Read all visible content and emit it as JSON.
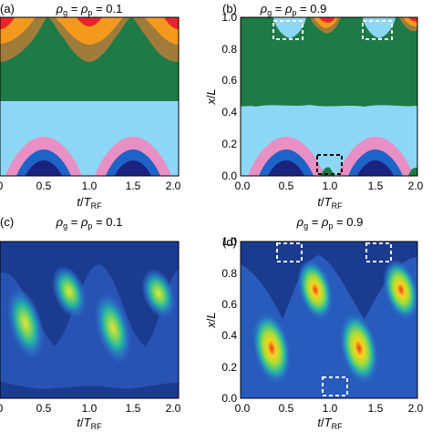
{
  "chart_data": [
    {
      "panel": "(a)",
      "type": "heatmap",
      "title": "ρg = ρp = 0.1",
      "xlabel": "t/TRF",
      "ylabel": "",
      "xlim": [
        0,
        2.0
      ],
      "ylim": [
        0,
        1.0
      ],
      "xticks": [
        "0",
        "0.5",
        "1.0",
        "1.5",
        "2.0"
      ],
      "yticks": [],
      "regions": [
        {
          "color": "#1a237e",
          "desc": "lower arcs core",
          "peaks_t": [
            0.5,
            1.5
          ],
          "x_max": 0.14
        },
        {
          "color": "#1e63c8",
          "desc": "lower arcs",
          "peaks_t": [
            0.5,
            1.5
          ],
          "x_max": 0.17
        },
        {
          "color": "#e88fc4",
          "desc": "lower arcs outer",
          "peaks_t": [
            0.5,
            1.5
          ],
          "x_max": 0.23
        },
        {
          "color": "#8ed6f5",
          "desc": "middle band",
          "x_range": [
            0.0,
            0.46
          ]
        },
        {
          "color": "#1e7a46",
          "desc": "upper band",
          "x_range": [
            0.46,
            0.88
          ]
        },
        {
          "color": "#a07c3a",
          "desc": "top arcs",
          "peaks_t": [
            0.0,
            1.0,
            2.0
          ],
          "x_min": 0.78
        },
        {
          "color": "#f39a1e",
          "desc": "top arcs",
          "peaks_t": [
            0.0,
            1.0,
            2.0
          ],
          "x_min": 0.86
        },
        {
          "color": "#e8262a",
          "desc": "top arcs core",
          "peaks_t": [
            0.0,
            1.0,
            2.0
          ],
          "x_min": 0.94
        }
      ]
    },
    {
      "panel": "(b)",
      "type": "heatmap",
      "title": "ρg = ρp = 0.9",
      "xlabel": "t/TRF",
      "ylabel": "x/L",
      "xlim": [
        0,
        2.0
      ],
      "ylim": [
        0,
        1.0
      ],
      "xticks": [
        "0.0",
        "0.5",
        "1.0",
        "1.5",
        "2.0"
      ],
      "yticks": [
        "0.0",
        "0.2",
        "0.4",
        "0.6",
        "0.8",
        "1.0"
      ],
      "dashed_boxes": [
        {
          "t": [
            0.18,
            0.52
          ],
          "x": [
            0.88,
            0.99
          ],
          "color": "white"
        },
        {
          "t": [
            1.18,
            1.52
          ],
          "x": [
            0.88,
            0.99
          ],
          "color": "white"
        },
        {
          "t": [
            0.85,
            1.13
          ],
          "x": [
            0.0,
            0.1
          ],
          "color": "black"
        }
      ]
    },
    {
      "panel": "(c)",
      "type": "heatmap",
      "title": "ρg = ρp = 0.1",
      "xlabel": "t/TRF",
      "ylabel": "",
      "xlim": [
        0,
        2.0
      ],
      "ylim": [
        0,
        1.0
      ],
      "xticks": [
        "0",
        "0.5",
        "1.0",
        "1.5",
        "2.0"
      ],
      "yticks": [],
      "hotspots": [
        {
          "t": 0.3,
          "x": 0.43
        },
        {
          "t": 0.78,
          "x": 0.62
        },
        {
          "t": 1.3,
          "x": 0.38
        },
        {
          "t": 1.78,
          "x": 0.62
        }
      ]
    },
    {
      "panel": "(d)",
      "type": "heatmap",
      "title": "ρg = ρp = 0.9",
      "xlabel": "t/TRF",
      "ylabel": "x/L",
      "xlim": [
        0,
        2.0
      ],
      "ylim": [
        0,
        1.0
      ],
      "xticks": [
        "0.0",
        "0.5",
        "1.0",
        "1.5",
        "2.0"
      ],
      "yticks": [
        "0.0",
        "0.2",
        "0.4",
        "0.6",
        "0.8",
        "1.0"
      ],
      "hotspots": [
        {
          "t": 0.3,
          "x": 0.3
        },
        {
          "t": 0.8,
          "x": 0.7
        },
        {
          "t": 1.3,
          "x": 0.3
        },
        {
          "t": 1.8,
          "x": 0.7
        }
      ],
      "dashed_boxes": [
        {
          "t": [
            0.2,
            0.45
          ],
          "x": [
            0.86,
            0.98
          ],
          "color": "white"
        },
        {
          "t": [
            1.2,
            1.45
          ],
          "x": [
            0.86,
            0.98
          ],
          "color": "white"
        },
        {
          "t": [
            0.8,
            1.05
          ],
          "x": [
            0.0,
            0.1
          ],
          "color": "white"
        }
      ]
    }
  ]
}
